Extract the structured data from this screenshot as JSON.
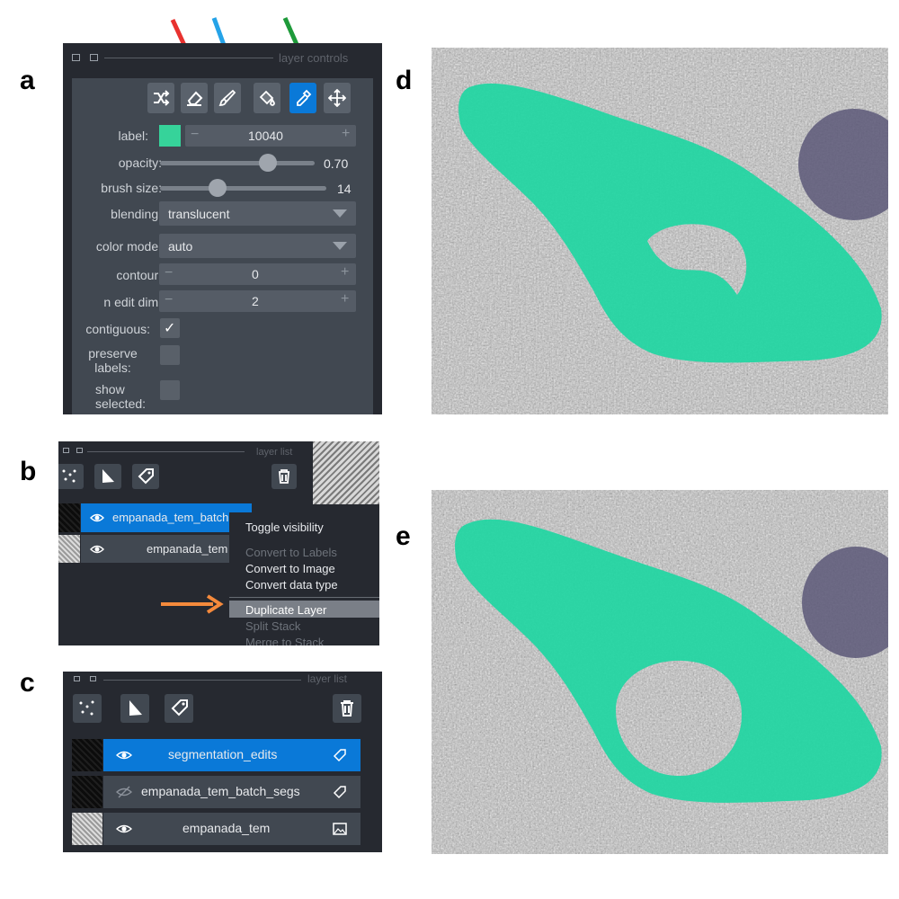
{
  "panel_letters": {
    "a": "a",
    "b": "b",
    "c": "c",
    "d": "d",
    "e": "e"
  },
  "colors": {
    "arrow_red": "#e8322f",
    "arrow_blue": "#25a3e8",
    "arrow_green": "#1e9a3a",
    "arrow_orange": "#f58a3c",
    "label_swatch": "#36d39a",
    "segmentation": "#1fd6a2",
    "selection_blue": "#0a79d8"
  },
  "layer_controls": {
    "header": "layer controls",
    "tools": [
      "shuffle-colors",
      "eraser",
      "paint-brush",
      "fill-bucket",
      "color-picker",
      "pan-zoom"
    ],
    "active_tool": "color-picker",
    "label_label": "label:",
    "label_minus": "−",
    "label_value": "10040",
    "label_plus": "+",
    "opacity_label": "opacity:",
    "opacity_value": "0.70",
    "opacity": 0.7,
    "brush_label": "brush size:",
    "brush_value": "14",
    "blending_label": "blending:",
    "blending_value": "translucent",
    "colormode_label": "color mode:",
    "colormode_value": "auto",
    "contour_label": "contour:",
    "contour_minus": "−",
    "contour_value": "0",
    "contour_plus": "+",
    "ndim_label": "n edit dim:",
    "ndim_minus": "−",
    "ndim_value": "2",
    "ndim_plus": "+",
    "contiguous_label": "contiguous:",
    "contiguous_check": "✓",
    "preserve_label_1": "preserve",
    "preserve_label_2": "labels:",
    "show_label_1": "show",
    "show_label_2": "selected:"
  },
  "layer_list_b": {
    "header": "layer list",
    "layers": [
      {
        "name": "empanada_tem_batch"
      },
      {
        "name": "empanada_tem"
      }
    ],
    "context_menu": [
      "Toggle visibility",
      "Convert to Labels",
      "Convert to Image",
      "Convert data type",
      "Duplicate Layer",
      "Split Stack",
      "Merge to Stack"
    ],
    "highlighted_item": "Duplicate Layer"
  },
  "layer_list_c": {
    "header": "layer list",
    "layers": [
      {
        "name": "segmentation_edits",
        "selected": true,
        "visible": true
      },
      {
        "name": "empanada_tem_batch_segs",
        "selected": false,
        "visible": false
      },
      {
        "name": "empanada_tem",
        "selected": false,
        "visible": true
      }
    ]
  }
}
